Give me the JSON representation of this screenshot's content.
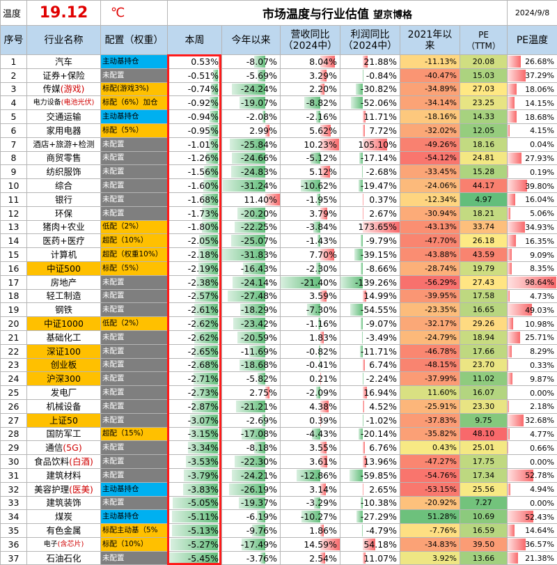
{
  "header": {
    "temp_label": "温度",
    "temp_value": "19.12",
    "temp_unit": "℃",
    "title": "市场温度与行业估值",
    "subtitle": "望京博格",
    "date": "2024/9/8"
  },
  "columns": [
    "序号",
    "行业名称",
    "配置（权重）",
    "本周",
    "今年以来",
    "营收同比\n（2024中）",
    "利润同比\n（2024中）",
    "2021年以\n来",
    "PE\n（TTM）",
    "PE温度"
  ],
  "rows": [
    {
      "no": "1",
      "name": "汽车",
      "alloc": "主动基持仓",
      "wk": "0.53%",
      "ytd": "-8.07%",
      "rev": "8.04%",
      "prof": "21.88%",
      "s21": "-11.13%",
      "pe": "20.08",
      "pet": "26.68%"
    },
    {
      "no": "2",
      "name": "证券+保险",
      "alloc": "未配置",
      "wk": "-0.51%",
      "ytd": "-5.69%",
      "rev": "3.29%",
      "prof": "-0.84%",
      "s21": "-40.47%",
      "pe": "15.03",
      "pet": "37.29%"
    },
    {
      "no": "3",
      "name": "传媒",
      "name_hl": "(游戏)",
      "alloc": "标配(游戏3%)",
      "wk": "-0.74%",
      "ytd": "-24.24%",
      "rev": "2.20%",
      "prof": "-30.82%",
      "s21": "-34.89%",
      "pe": "27.03",
      "pet": "18.06%"
    },
    {
      "no": "4",
      "name": "电力设备",
      "name_hl": "(电池光伏)",
      "alloc": "标配（6%）加仓",
      "wk": "-0.92%",
      "ytd": "-19.07%",
      "rev": "-8.82%",
      "prof": "-52.06%",
      "s21": "-34.14%",
      "pe": "23.25",
      "pet": "14.15%"
    },
    {
      "no": "5",
      "name": "交通运输",
      "alloc": "主动基持仓",
      "wk": "-0.94%",
      "ytd": "-2.08%",
      "rev": "-2.16%",
      "prof": "11.71%",
      "s21": "-18.16%",
      "pe": "14.33",
      "pet": "18.68%"
    },
    {
      "no": "6",
      "name": "家用电器",
      "alloc": "标配（5%）",
      "wk": "-0.95%",
      "ytd": "2.99%",
      "rev": "5.62%",
      "prof": "7.72%",
      "s21": "-32.02%",
      "pe": "12.05",
      "pet": "4.15%"
    },
    {
      "no": "7",
      "name": "酒店+旅游+检测",
      "alloc": "未配置",
      "wk": "-1.01%",
      "ytd": "-25.84%",
      "rev": "10.23%",
      "prof": "105.10%",
      "s21": "-49.26%",
      "pe": "18.16",
      "pet": "0.04%"
    },
    {
      "no": "8",
      "name": "商贸零售",
      "alloc": "未配置",
      "wk": "-1.26%",
      "ytd": "-24.66%",
      "rev": "-5.12%",
      "prof": "-17.14%",
      "s21": "-54.12%",
      "pe": "24.81",
      "pet": "27.93%"
    },
    {
      "no": "9",
      "name": "纺织服饰",
      "alloc": "未配置",
      "wk": "-1.56%",
      "ytd": "-24.83%",
      "rev": "5.12%",
      "prof": "-2.68%",
      "s21": "-33.45%",
      "pe": "15.28",
      "pet": "0.19%"
    },
    {
      "no": "10",
      "name": "综合",
      "alloc": "未配置",
      "wk": "-1.60%",
      "ytd": "-31.24%",
      "rev": "-10.62%",
      "prof": "-19.47%",
      "s21": "-24.06%",
      "pe": "44.17",
      "pet": "39.80%"
    },
    {
      "no": "11",
      "name": "银行",
      "alloc": "未配置",
      "wk": "-1.68%",
      "ytd": "11.40%",
      "rev": "-1.95%",
      "prof": "0.37%",
      "s21": "-12.34%",
      "pe": "4.97",
      "pet": "16.04%"
    },
    {
      "no": "12",
      "name": "环保",
      "alloc": "未配置",
      "wk": "-1.73%",
      "ytd": "-20.20%",
      "rev": "3.79%",
      "prof": "2.67%",
      "s21": "-30.94%",
      "pe": "18.21",
      "pet": "5.06%"
    },
    {
      "no": "13",
      "name": "猪肉+农业",
      "alloc": "低配（2%）",
      "wk": "-1.80%",
      "ytd": "-22.25%",
      "rev": "-3.84%",
      "prof": "173.65%",
      "s21": "-43.13%",
      "pe": "33.74",
      "pet": "34.93%"
    },
    {
      "no": "14",
      "name": "医药+医疗",
      "alloc": "超配（10%）",
      "wk": "-2.05%",
      "ytd": "-25.07%",
      "rev": "-1.43%",
      "prof": "-9.79%",
      "s21": "-47.70%",
      "pe": "26.18",
      "pet": "16.35%"
    },
    {
      "no": "15",
      "name": "计算机",
      "alloc": "超配（权重10%）",
      "wk": "-2.18%",
      "ytd": "-31.83%",
      "rev": "7.70%",
      "prof": "-39.15%",
      "s21": "-43.88%",
      "pe": "43.59",
      "pet": "9.09%"
    },
    {
      "no": "16",
      "name": "中证500",
      "alloc": "标配（5%）",
      "wk": "-2.19%",
      "ytd": "-16.43%",
      "rev": "-2.30%",
      "prof": "-8.66%",
      "s21": "-28.74%",
      "pe": "19.79",
      "pet": "8.35%"
    },
    {
      "no": "17",
      "name": "房地产",
      "alloc": "未配置",
      "wk": "-2.38%",
      "ytd": "-24.14%",
      "rev": "-21.40%",
      "prof": "-139.26%",
      "s21": "-56.29%",
      "pe": "27.43",
      "pet": "98.64%"
    },
    {
      "no": "18",
      "name": "轻工制造",
      "alloc": "未配置",
      "wk": "-2.57%",
      "ytd": "-27.48%",
      "rev": "3.59%",
      "prof": "14.99%",
      "s21": "-39.95%",
      "pe": "17.58",
      "pet": "4.73%"
    },
    {
      "no": "19",
      "name": "钢铁",
      "alloc": "未配置",
      "wk": "-2.61%",
      "ytd": "-18.29%",
      "rev": "-7.30%",
      "prof": "-54.55%",
      "s21": "-23.35%",
      "pe": "16.65",
      "pet": "49.03%"
    },
    {
      "no": "20",
      "name": "中证1000",
      "alloc": "低配（2%）",
      "wk": "-2.62%",
      "ytd": "-23.42%",
      "rev": "-1.16%",
      "prof": "-9.07%",
      "s21": "-32.17%",
      "pe": "29.26",
      "pet": "10.98%"
    },
    {
      "no": "21",
      "name": "基础化工",
      "alloc": "未配置",
      "wk": "-2.62%",
      "ytd": "-20.59%",
      "rev": "1.83%",
      "prof": "-3.49%",
      "s21": "-24.79%",
      "pe": "18.94",
      "pet": "25.71%"
    },
    {
      "no": "22",
      "name": "深证100",
      "alloc": "未配置",
      "wk": "-2.65%",
      "ytd": "-11.69%",
      "rev": "-0.82%",
      "prof": "-11.71%",
      "s21": "-46.78%",
      "pe": "17.66",
      "pet": "8.29%"
    },
    {
      "no": "23",
      "name": "创业板",
      "alloc": "未配置",
      "wk": "-2.68%",
      "ytd": "-18.68%",
      "rev": "-0.41%",
      "prof": "6.74%",
      "s21": "-48.15%",
      "pe": "23.70",
      "pet": "0.33%"
    },
    {
      "no": "24",
      "name": "沪深300",
      "alloc": "未配置",
      "wk": "-2.71%",
      "ytd": "-5.82%",
      "rev": "0.21%",
      "prof": "-2.24%",
      "s21": "-37.99%",
      "pe": "11.02",
      "pet": "9.87%"
    },
    {
      "no": "25",
      "name": "发电厂",
      "alloc": "未配置",
      "wk": "-2.73%",
      "ytd": "2.75%",
      "rev": "-2.09%",
      "prof": "16.94%",
      "s21": "11.60%",
      "pe": "16.07",
      "pet": "0.00%"
    },
    {
      "no": "26",
      "name": "机械设备",
      "alloc": "未配置",
      "wk": "-2.87%",
      "ytd": "-21.21%",
      "rev": "4.38%",
      "prof": "4.52%",
      "s21": "-25.91%",
      "pe": "23.30",
      "pet": "2.18%"
    },
    {
      "no": "27",
      "name": "上证50",
      "alloc": "未配置",
      "wk": "-3.07%",
      "ytd": "-2.69%",
      "rev": "0.39%",
      "prof": "-1.02%",
      "s21": "-37.83%",
      "pe": "9.75",
      "pet": "32.68%"
    },
    {
      "no": "28",
      "name": "国防军工",
      "alloc": "超配（15%）",
      "wk": "-3.15%",
      "ytd": "-17.08%",
      "rev": "-4.43%",
      "prof": "-20.14%",
      "s21": "-35.82%",
      "pe": "48.10",
      "pet": "4.77%"
    },
    {
      "no": "29",
      "name": "通信",
      "name_hl": "(5G)",
      "alloc": "未配置",
      "wk": "-3.34%",
      "ytd": "-8.18%",
      "rev": "3.55%",
      "prof": "6.76%",
      "s21": "0.43%",
      "pe": "25.01",
      "pet": "0.66%"
    },
    {
      "no": "30",
      "name": "食品饮料",
      "name_hl": "(白酒)",
      "alloc": "未配置",
      "wk": "-3.53%",
      "ytd": "-22.30%",
      "rev": "3.61%",
      "prof": "13.96%",
      "s21": "-47.27%",
      "pe": "17.75",
      "pet": "0.00%"
    },
    {
      "no": "31",
      "name": "建筑材料",
      "alloc": "未配置",
      "wk": "-3.79%",
      "ytd": "-24.21%",
      "rev": "-12.86%",
      "prof": "-59.85%",
      "s21": "-54.76%",
      "pe": "17.34",
      "pet": "52.78%"
    },
    {
      "no": "32",
      "name": "美容护理",
      "name_hl": "(医美)",
      "alloc": "主动基持仓",
      "wk": "-3.83%",
      "ytd": "-26.19%",
      "rev": "3.14%",
      "prof": "2.65%",
      "s21": "-53.15%",
      "pe": "25.56",
      "pet": "4.94%"
    },
    {
      "no": "33",
      "name": "建筑装饰",
      "alloc": "未配置",
      "wk": "-5.05%",
      "ytd": "-19.37%",
      "rev": "-3.29%",
      "prof": "-10.38%",
      "s21": "-20.92%",
      "pe": "7.27",
      "pet": "0.00%"
    },
    {
      "no": "34",
      "name": "煤炭",
      "alloc": "主动基持仓",
      "wk": "-5.11%",
      "ytd": "-6.19%",
      "rev": "-10.27%",
      "prof": "-27.29%",
      "s21": "51.28%",
      "pe": "10.69",
      "pet": "52.43%"
    },
    {
      "no": "35",
      "name": "有色金属",
      "alloc": "标配主动基（5%",
      "wk": "-5.13%",
      "ytd": "-9.76%",
      "rev": "1.86%",
      "prof": "-4.79%",
      "s21": "-7.76%",
      "pe": "16.59",
      "pet": "14.64%"
    },
    {
      "no": "36",
      "name": "电子",
      "name_hl": "(含芯片)",
      "alloc": "标配（10%）",
      "wk": "-5.27%",
      "ytd": "-17.49%",
      "rev": "14.59%",
      "prof": "54.18%",
      "s21": "-34.83%",
      "pe": "39.50",
      "pet": "36.57%"
    },
    {
      "no": "37",
      "name": "石油石化",
      "alloc": "未配置",
      "wk": "-5.45%",
      "ytd": "-3.76%",
      "rev": "2.54%",
      "prof": "11.07%",
      "s21": "3.92%",
      "pe": "13.66",
      "pet": "21.38%"
    }
  ],
  "index_rows": [
    "16",
    "20",
    "22",
    "23",
    "24",
    "27"
  ],
  "colors": {
    "header_bg": "#bdd7ee",
    "accent_red": "#e00000",
    "index_gold": "#ffc000",
    "alloc_blue": "#00b0f0",
    "alloc_grey": "#7f7f7f",
    "neg_bar": "#63be7b",
    "pos_bar": "#f8696b"
  }
}
